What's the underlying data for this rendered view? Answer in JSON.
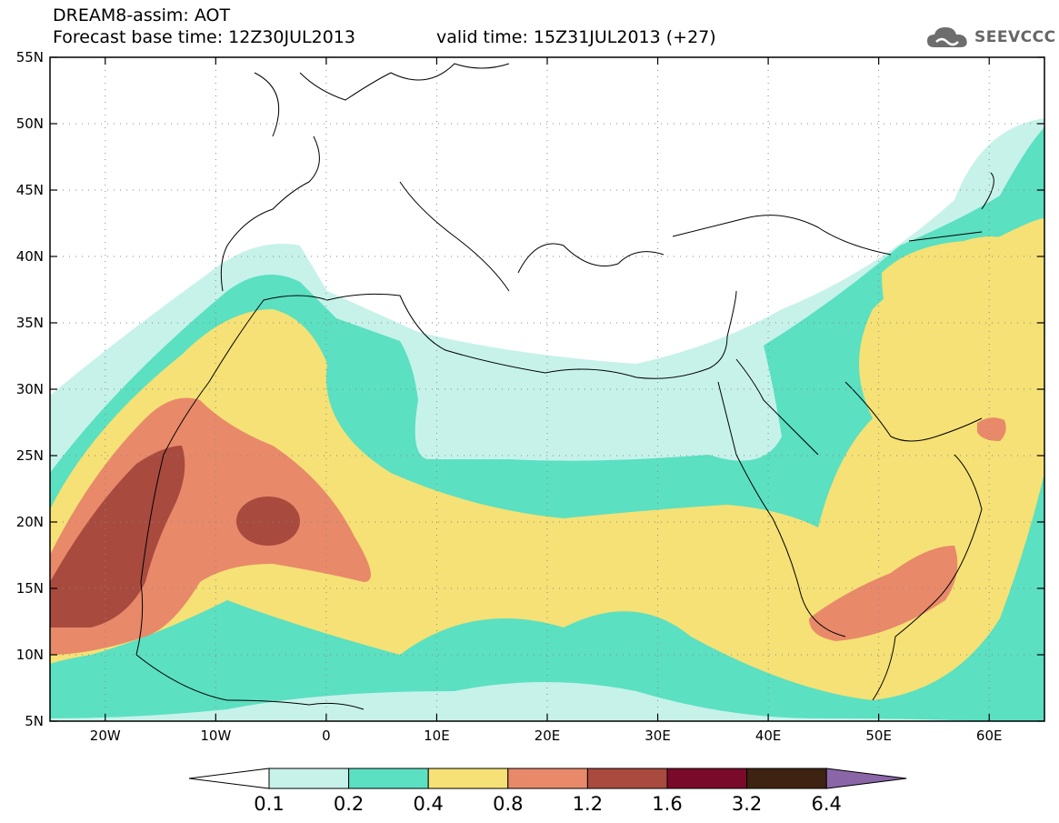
{
  "header": {
    "line1": "DREAM8-assim: AOT",
    "line2": "Forecast base time: 12Z30JUL2013",
    "valid": "valid time: 15Z31JUL2013 (+27)"
  },
  "logo": {
    "icon": "cloud-icon",
    "text": "SEEVCCC"
  },
  "map": {
    "lon_range": [
      -25,
      65
    ],
    "lat_range": [
      5,
      55
    ],
    "lat_labels": [
      "55N",
      "50N",
      "45N",
      "40N",
      "35N",
      "30N",
      "25N",
      "20N",
      "15N",
      "10N",
      "5N"
    ],
    "lon_labels": [
      "20W",
      "10W",
      "0",
      "10E",
      "20E",
      "30E",
      "40E",
      "50E",
      "60E"
    ]
  },
  "legend": {
    "labels": [
      "0.1",
      "0.2",
      "0.4",
      "0.8",
      "1.2",
      "1.6",
      "3.2",
      "6.4"
    ],
    "colors": [
      "#c6f2ea",
      "#5be0c1",
      "#f5e175",
      "#e8896a",
      "#a94a3f",
      "#7a0a2a",
      "#3e2312",
      "#8a66a8"
    ]
  }
}
